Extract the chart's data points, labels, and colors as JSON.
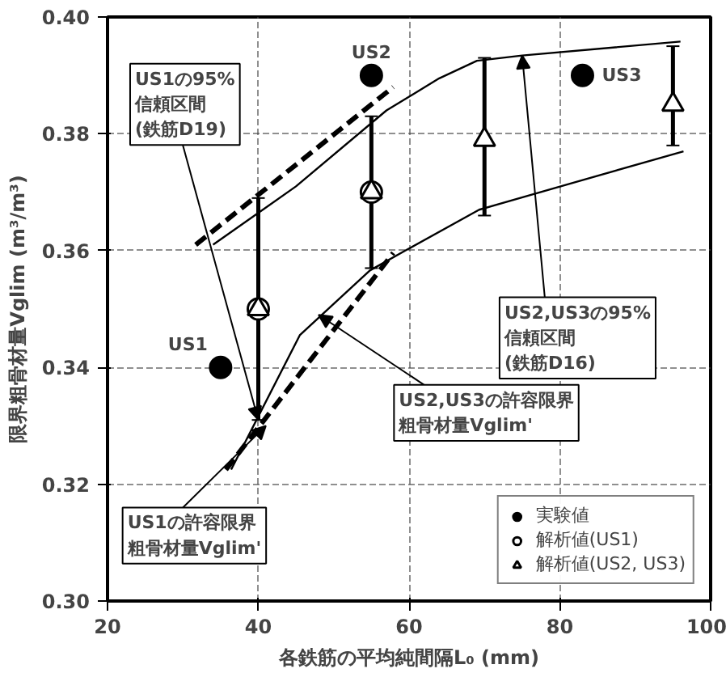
{
  "chart_data": {
    "type": "scatter",
    "xlabel": "各鉄筋の平均純間隔L₀ (mm)",
    "ylabel": "限界粗骨材量Vglim (m³/m³)",
    "xlim": [
      20,
      100
    ],
    "ylim": [
      0.3,
      0.4
    ],
    "xticks": [
      20,
      40,
      60,
      80,
      100
    ],
    "yticks": [
      {
        "value": 0.3,
        "label": "0.30"
      },
      {
        "value": 0.32,
        "label": "0.32"
      },
      {
        "value": 0.34,
        "label": "0.34"
      },
      {
        "value": 0.36,
        "label": "0.36"
      },
      {
        "value": 0.38,
        "label": "0.38"
      },
      {
        "value": 0.4,
        "label": "0.40"
      }
    ],
    "grid": true,
    "legend": "bottom right",
    "series": [
      {
        "type": "line",
        "line_style": "solid",
        "marker": "none",
        "color": "#000000",
        "x": [
          34,
          45,
          57,
          64,
          69,
          75,
          96
        ],
        "values": [
          0.361,
          0.371,
          0.384,
          0.3895,
          0.3925,
          0.3934,
          0.3958
        ]
      },
      {
        "type": "line",
        "line_style": "solid",
        "marker": "none",
        "color": "#000000",
        "x": [
          36.4,
          45.5,
          54.8,
          59.5,
          69.3,
          81.7,
          96.4
        ],
        "values": [
          0.3225,
          0.3455,
          0.3566,
          0.36,
          0.367,
          0.3716,
          0.377
        ]
      },
      {
        "type": "line",
        "line_style": "dashed",
        "marker": "none",
        "color": "#000000",
        "x": [
          31.7,
          57.9
        ],
        "values": [
          0.361,
          0.388
        ]
      },
      {
        "type": "line",
        "line_style": "dashed",
        "marker": "none",
        "color": "#000000",
        "x": [
          35.7,
          57.9
        ],
        "values": [
          0.3225,
          0.3596
        ]
      },
      {
        "name": "実験値",
        "marker": "circle",
        "color": "#000000",
        "x": [
          35,
          55,
          83
        ],
        "values": [
          0.34,
          0.39,
          0.39
        ]
      },
      {
        "name": "解析値(US1)",
        "marker": "circle",
        "color": "#ffffff",
        "x": [
          40,
          55
        ],
        "values": [
          0.35,
          0.37
        ],
        "errors": [
          [
            0.331,
            0.369
          ],
          [
            0.357,
            0.383
          ]
        ]
      },
      {
        "name": "解析値(US2, US3)",
        "marker": "triangle",
        "color": "#ffffff",
        "x": [
          40,
          55,
          70,
          95
        ],
        "values": [
          0.35,
          0.37,
          0.379,
          0.385
        ],
        "errors": [
          null,
          null,
          [
            0.366,
            0.393
          ],
          [
            0.378,
            0.395
          ]
        ]
      }
    ],
    "annotations": [
      {
        "text": "US1",
        "x": 35,
        "y": 0.34
      },
      {
        "text": "US2",
        "x": 55,
        "y": 0.39
      },
      {
        "text": "US3",
        "x": 83,
        "y": 0.39
      },
      {
        "text": "US1の95%信頼区間(鉄筋D19)",
        "x": 40,
        "y": 0.331
      },
      {
        "text": "US2,US3の95%信頼区間(鉄筋D16)",
        "x": 75,
        "y": 0.3934
      },
      {
        "text": "US2,US3の許容限界粗骨材量Vglim'",
        "x": 48,
        "y": 0.349
      },
      {
        "text": "US1の許容限界粗骨材量Vglim'",
        "x": 41,
        "y": 0.33
      }
    ]
  }
}
